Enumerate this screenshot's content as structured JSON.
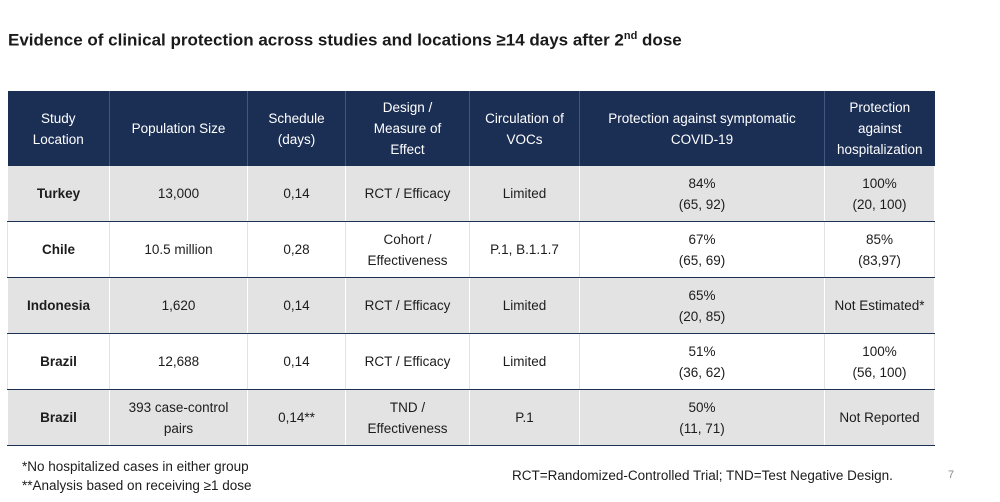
{
  "title": {
    "main": "Evidence of clinical protection across studies and locations ≥14 days after 2",
    "sup": "nd",
    "tail": " dose"
  },
  "table": {
    "headers": [
      [
        "Study",
        "Location"
      ],
      [
        "Population Size"
      ],
      [
        "Schedule",
        "(days)"
      ],
      [
        "Design /",
        "Measure of",
        "Effect"
      ],
      [
        "Circulation of",
        "VOCs"
      ],
      [
        "Protection against symptomatic",
        "COVID-19"
      ],
      [
        "Protection",
        "against",
        "hospitalization"
      ]
    ],
    "rows": [
      {
        "location": "Turkey",
        "population": [
          "13,000"
        ],
        "schedule": "0,14",
        "design": [
          "RCT / Efficacy"
        ],
        "vocs": "Limited",
        "symptomatic": [
          "84%",
          "(65, 92)"
        ],
        "hospitalization": [
          "100%",
          "(20, 100)"
        ]
      },
      {
        "location": "Chile",
        "population": [
          "10.5 million"
        ],
        "schedule": "0,28",
        "design": [
          "Cohort /",
          "Effectiveness"
        ],
        "vocs": "P.1, B.1.1.7",
        "symptomatic": [
          "67%",
          "(65, 69)"
        ],
        "hospitalization": [
          "85%",
          "(83,97)"
        ]
      },
      {
        "location": "Indonesia",
        "population": [
          "1,620"
        ],
        "schedule": "0,14",
        "design": [
          "RCT / Efficacy"
        ],
        "vocs": "Limited",
        "symptomatic": [
          "65%",
          "(20, 85)"
        ],
        "hospitalization": [
          "Not Estimated*"
        ]
      },
      {
        "location": "Brazil",
        "population": [
          "12,688"
        ],
        "schedule": "0,14",
        "design": [
          "RCT / Efficacy"
        ],
        "vocs": "Limited",
        "symptomatic": [
          "51%",
          "(36, 62)"
        ],
        "hospitalization": [
          "100%",
          "(56, 100)"
        ]
      },
      {
        "location": "Brazil",
        "population": [
          "393 case-control",
          "pairs"
        ],
        "schedule": "0,14**",
        "design": [
          "TND /",
          "Effectiveness"
        ],
        "vocs": "P.1",
        "symptomatic": [
          "50%",
          "(11, 71)"
        ],
        "hospitalization": [
          "Not Reported"
        ]
      }
    ]
  },
  "footnotes": {
    "line1": "*No hospitalized cases in either group",
    "line2": "**Analysis based on receiving ≥1 dose",
    "abbreviations": "RCT=Randomized-Controlled Trial; TND=Test Negative Design."
  },
  "page_number": "7"
}
